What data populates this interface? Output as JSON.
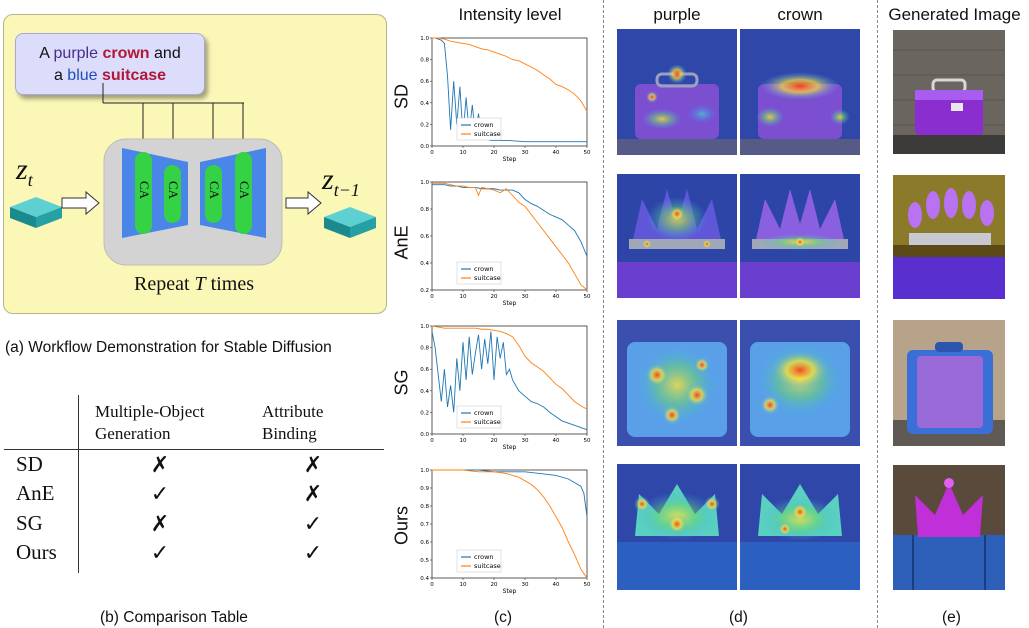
{
  "panel_a": {
    "prompt_words": [
      "A",
      "purple",
      "crown",
      "and",
      "a",
      "blue",
      "suitcase"
    ],
    "z_t_base": "z",
    "z_t_sub": "t",
    "z_tm1_base": "z",
    "z_tm1_sub": "t−1",
    "ca_labels": [
      "CA",
      "CA",
      "CA",
      "CA"
    ],
    "repeat_prefix": "Repeat",
    "repeat_var": "T",
    "repeat_suffix": "times",
    "caption": "(a) Workflow Demonstration for Stable Diffusion"
  },
  "panel_b": {
    "header_col1_line1": "Multiple-Object",
    "header_col1_line2": "Generation",
    "header_col2_line1": "Attribute",
    "header_col2_line2": "Binding",
    "rows": [
      {
        "method": "SD",
        "multi": "✗",
        "binding": "✗"
      },
      {
        "method": "AnE",
        "multi": "✓",
        "binding": "✗"
      },
      {
        "method": "SG",
        "multi": "✗",
        "binding": "✓"
      },
      {
        "method": "Ours",
        "multi": "✓",
        "binding": "✓"
      }
    ],
    "caption": "(b) Comparison Table"
  },
  "headers": {
    "intensity": "Intensity level",
    "purple": "purple",
    "crown": "crown",
    "generated": "Generated Image"
  },
  "captions": {
    "c": "(c)",
    "d": "(d)",
    "e": "(e)"
  },
  "row_labels": [
    "SD",
    "AnE",
    "SG",
    "Ours"
  ],
  "colors": {
    "crown_line": "#1f77b4",
    "suitcase_line": "#ff7f0e",
    "panel_a_bg": "#fbf7b7",
    "prompt_bg": "#dcdcfb",
    "unet_blue": "#3f7fe0",
    "ca_green": "#3fd24a"
  },
  "chart_data": [
    {
      "type": "line",
      "method": "SD",
      "xlabel": "Step",
      "xlim": [
        0,
        50
      ],
      "ylim": [
        0.0,
        1.0
      ],
      "xticks": [
        0,
        10,
        20,
        30,
        40,
        50
      ],
      "yticks": [
        0.0,
        0.2,
        0.4,
        0.6,
        0.8,
        1.0
      ],
      "ytick_labels": [
        "0.0",
        "0.2",
        "0.4",
        "0.6",
        "0.8",
        "1.0"
      ],
      "legend": [
        "crown",
        "suitcase"
      ],
      "series": [
        {
          "name": "crown",
          "x": [
            0,
            1,
            2,
            3,
            4,
            5,
            6,
            7,
            8,
            9,
            10,
            11,
            12,
            13,
            14,
            15,
            16,
            17,
            18,
            19,
            20,
            25,
            30,
            35,
            40,
            45,
            50
          ],
          "y": [
            1.0,
            1.0,
            0.99,
            0.98,
            0.95,
            0.65,
            0.15,
            0.6,
            0.2,
            0.55,
            0.1,
            0.45,
            0.12,
            0.38,
            0.1,
            0.3,
            0.08,
            0.25,
            0.06,
            0.05,
            0.05,
            0.05,
            0.04,
            0.04,
            0.04,
            0.04,
            0.04
          ]
        },
        {
          "name": "suitcase",
          "x": [
            0,
            2,
            4,
            6,
            8,
            10,
            12,
            14,
            16,
            18,
            20,
            22,
            24,
            26,
            28,
            30,
            32,
            34,
            36,
            38,
            40,
            42,
            44,
            46,
            48,
            50
          ],
          "y": [
            1.0,
            1.0,
            0.99,
            0.97,
            0.96,
            0.95,
            0.94,
            0.92,
            0.9,
            0.89,
            0.87,
            0.85,
            0.83,
            0.8,
            0.79,
            0.76,
            0.73,
            0.7,
            0.66,
            0.62,
            0.57,
            0.55,
            0.52,
            0.48,
            0.42,
            0.32
          ]
        }
      ]
    },
    {
      "type": "line",
      "method": "AnE",
      "xlabel": "Step",
      "xlim": [
        0,
        50
      ],
      "ylim": [
        0.2,
        1.0
      ],
      "xticks": [
        0,
        10,
        20,
        30,
        40,
        50
      ],
      "yticks": [
        0.2,
        0.4,
        0.6,
        0.8,
        1.0
      ],
      "ytick_labels": [
        "0.2",
        "0.4",
        "0.6",
        "0.8",
        "1.0"
      ],
      "legend": [
        "crown",
        "suitcase"
      ],
      "series": [
        {
          "name": "crown",
          "x": [
            0,
            2,
            4,
            6,
            8,
            10,
            12,
            14,
            16,
            18,
            20,
            22,
            24,
            26,
            28,
            30,
            32,
            34,
            36,
            38,
            40,
            42,
            44,
            46,
            48,
            50
          ],
          "y": [
            0.98,
            0.98,
            0.98,
            0.97,
            0.97,
            0.96,
            0.96,
            0.96,
            0.95,
            0.95,
            0.95,
            0.94,
            0.94,
            0.94,
            0.92,
            0.87,
            0.84,
            0.82,
            0.79,
            0.76,
            0.74,
            0.72,
            0.68,
            0.64,
            0.56,
            0.45
          ]
        },
        {
          "name": "suitcase",
          "x": [
            0,
            2,
            4,
            6,
            8,
            10,
            12,
            14,
            15,
            16,
            18,
            20,
            22,
            24,
            26,
            28,
            30,
            32,
            34,
            36,
            38,
            40,
            42,
            44,
            46,
            48,
            50
          ],
          "y": [
            0.99,
            0.99,
            0.99,
            0.98,
            0.97,
            0.97,
            0.96,
            0.96,
            0.9,
            0.96,
            0.95,
            0.94,
            0.92,
            0.95,
            0.9,
            0.85,
            0.82,
            0.76,
            0.7,
            0.64,
            0.58,
            0.52,
            0.46,
            0.4,
            0.32,
            0.24,
            0.16
          ]
        }
      ]
    },
    {
      "type": "line",
      "method": "SG",
      "xlabel": "Step",
      "xlim": [
        0,
        50
      ],
      "ylim": [
        0.0,
        1.0
      ],
      "xticks": [
        0,
        10,
        20,
        30,
        40,
        50
      ],
      "yticks": [
        0.0,
        0.2,
        0.4,
        0.6,
        0.8,
        1.0
      ],
      "ytick_labels": [
        "0.0",
        "0.2",
        "0.4",
        "0.6",
        "0.8",
        "1.0"
      ],
      "legend": [
        "crown",
        "suitcase"
      ],
      "series": [
        {
          "name": "crown",
          "x": [
            0,
            1,
            2,
            3,
            4,
            5,
            6,
            7,
            8,
            9,
            10,
            11,
            12,
            13,
            14,
            15,
            16,
            17,
            18,
            19,
            20,
            21,
            22,
            23,
            24,
            25,
            26,
            28,
            30,
            32,
            34,
            36,
            38,
            40,
            42,
            44,
            46,
            48,
            50
          ],
          "y": [
            0.95,
            0.8,
            0.55,
            0.3,
            0.6,
            0.25,
            0.45,
            0.2,
            0.7,
            0.4,
            0.85,
            0.5,
            0.9,
            0.55,
            0.75,
            0.92,
            0.6,
            0.88,
            0.65,
            0.95,
            0.5,
            0.9,
            0.7,
            0.85,
            0.55,
            0.6,
            0.5,
            0.4,
            0.35,
            0.3,
            0.28,
            0.25,
            0.2,
            0.16,
            0.12,
            0.1,
            0.08,
            0.06,
            0.04
          ]
        },
        {
          "name": "suitcase",
          "x": [
            0,
            2,
            4,
            6,
            8,
            10,
            12,
            14,
            16,
            18,
            20,
            22,
            24,
            26,
            28,
            30,
            32,
            34,
            36,
            38,
            40,
            42,
            44,
            46,
            48,
            50
          ],
          "y": [
            1.0,
            0.99,
            0.98,
            0.98,
            0.98,
            0.98,
            0.98,
            0.98,
            0.97,
            0.97,
            0.96,
            0.95,
            0.93,
            0.9,
            0.82,
            0.72,
            0.66,
            0.62,
            0.58,
            0.52,
            0.46,
            0.42,
            0.36,
            0.3,
            0.26,
            0.23
          ]
        }
      ]
    },
    {
      "type": "line",
      "method": "Ours",
      "xlabel": "Step",
      "xlim": [
        0,
        50
      ],
      "ylim": [
        0.4,
        1.0
      ],
      "xticks": [
        0,
        10,
        20,
        30,
        40,
        50
      ],
      "yticks": [
        0.4,
        0.5,
        0.6,
        0.7,
        0.8,
        0.9,
        1.0
      ],
      "ytick_labels": [
        "0.4",
        "0.5",
        "0.6",
        "0.7",
        "0.8",
        "0.9",
        "1.0"
      ],
      "legend": [
        "crown",
        "suitcase"
      ],
      "series": [
        {
          "name": "crown",
          "x": [
            0,
            5,
            10,
            15,
            20,
            25,
            30,
            35,
            40,
            44,
            46,
            48,
            49,
            50
          ],
          "y": [
            1.0,
            1.0,
            1.0,
            1.0,
            0.99,
            0.99,
            0.99,
            0.98,
            0.97,
            0.95,
            0.93,
            0.91,
            0.87,
            0.74
          ]
        },
        {
          "name": "suitcase",
          "x": [
            0,
            5,
            10,
            15,
            20,
            24,
            26,
            28,
            30,
            32,
            34,
            36,
            38,
            40,
            42,
            44,
            46,
            48,
            50
          ],
          "y": [
            1.0,
            1.0,
            1.0,
            0.99,
            0.99,
            0.98,
            0.97,
            0.96,
            0.94,
            0.92,
            0.89,
            0.85,
            0.8,
            0.74,
            0.68,
            0.6,
            0.53,
            0.45,
            0.37
          ]
        }
      ]
    }
  ]
}
